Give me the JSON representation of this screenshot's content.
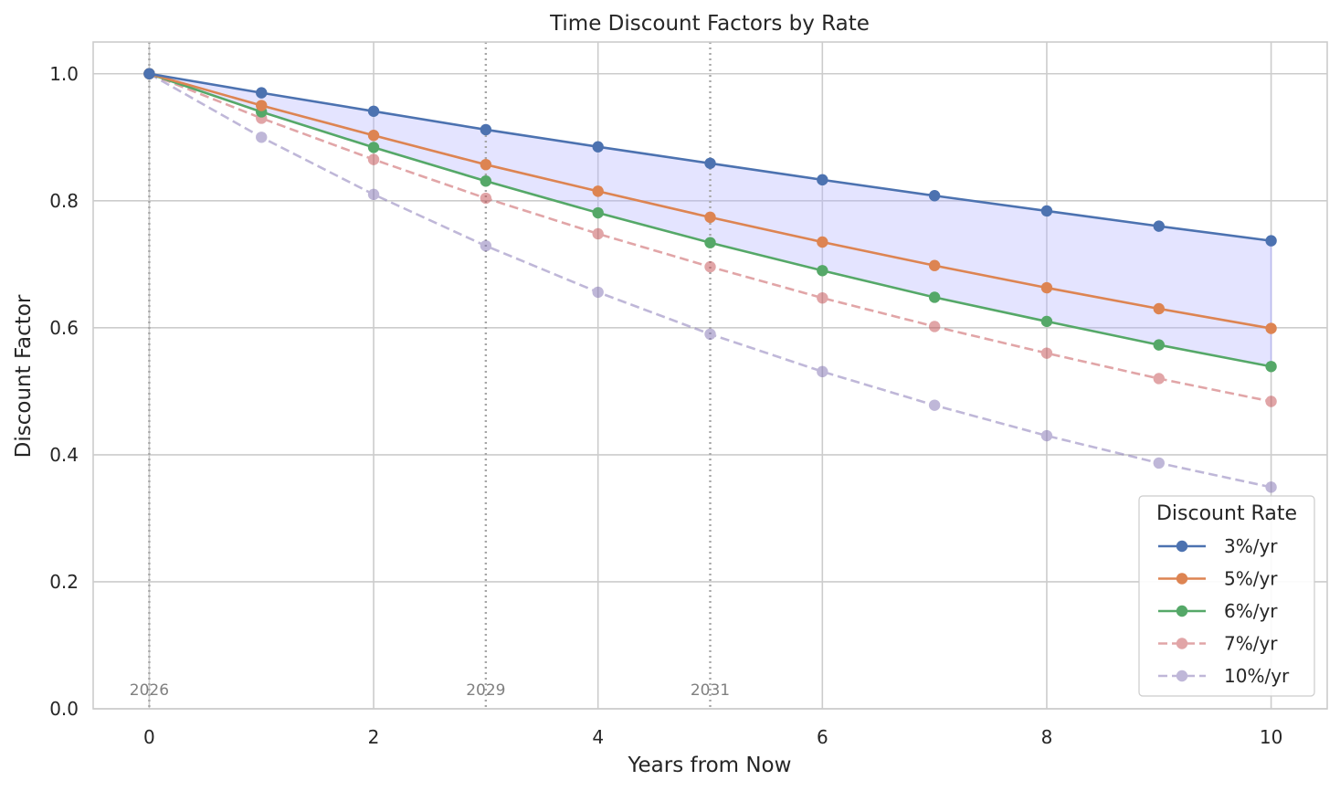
{
  "chart_data": {
    "type": "line",
    "title": "Time Discount Factors by Rate",
    "xlabel": "Years from Now",
    "ylabel": "Discount Factor",
    "xlim": [
      -0.5,
      10.5
    ],
    "ylim": [
      0.0,
      1.05
    ],
    "xticks": [
      0,
      2,
      4,
      6,
      8,
      10
    ],
    "xtick_labels": [
      "0",
      "2",
      "4",
      "6",
      "8",
      "10"
    ],
    "yticks": [
      0.0,
      0.2,
      0.4,
      0.6,
      0.8,
      1.0
    ],
    "ytick_labels": [
      "0.0",
      "0.2",
      "0.4",
      "0.6",
      "0.8",
      "1.0"
    ],
    "grid": true,
    "x": [
      0,
      1,
      2,
      3,
      4,
      5,
      6,
      7,
      8,
      9,
      10
    ],
    "series": [
      {
        "name": "3%/yr",
        "color": "#4c72b0",
        "style": "solid",
        "alpha": 1.0,
        "values": [
          1.0,
          0.97,
          0.941,
          0.912,
          0.885,
          0.859,
          0.833,
          0.808,
          0.784,
          0.76,
          0.737
        ]
      },
      {
        "name": "5%/yr",
        "color": "#dd8452",
        "style": "solid",
        "alpha": 1.0,
        "values": [
          1.0,
          0.95,
          0.903,
          0.857,
          0.815,
          0.774,
          0.735,
          0.698,
          0.663,
          0.63,
          0.599
        ]
      },
      {
        "name": "6%/yr",
        "color": "#55a868",
        "style": "solid",
        "alpha": 1.0,
        "values": [
          1.0,
          0.94,
          0.884,
          0.831,
          0.781,
          0.734,
          0.69,
          0.648,
          0.61,
          0.573,
          0.539
        ]
      },
      {
        "name": "7%/yr",
        "color": "#c44e52",
        "style": "dashed",
        "alpha": 0.5,
        "values": [
          1.0,
          0.93,
          0.865,
          0.804,
          0.748,
          0.696,
          0.647,
          0.602,
          0.56,
          0.52,
          0.484
        ]
      },
      {
        "name": "10%/yr",
        "color": "#8172b3",
        "style": "dashed",
        "alpha": 0.5,
        "values": [
          1.0,
          0.9,
          0.81,
          0.729,
          0.656,
          0.59,
          0.531,
          0.478,
          0.43,
          0.387,
          0.349
        ]
      }
    ],
    "shaded_band": {
      "upper_series": "3%/yr",
      "lower_series": "6%/yr",
      "color": "#b3b3ff",
      "alpha": 0.35
    },
    "vlines": [
      {
        "x": 0,
        "label": "2026"
      },
      {
        "x": 3,
        "label": "2029"
      },
      {
        "x": 5,
        "label": "2031"
      }
    ],
    "legend": {
      "title": "Discount Rate",
      "placement": "lower-right"
    }
  }
}
